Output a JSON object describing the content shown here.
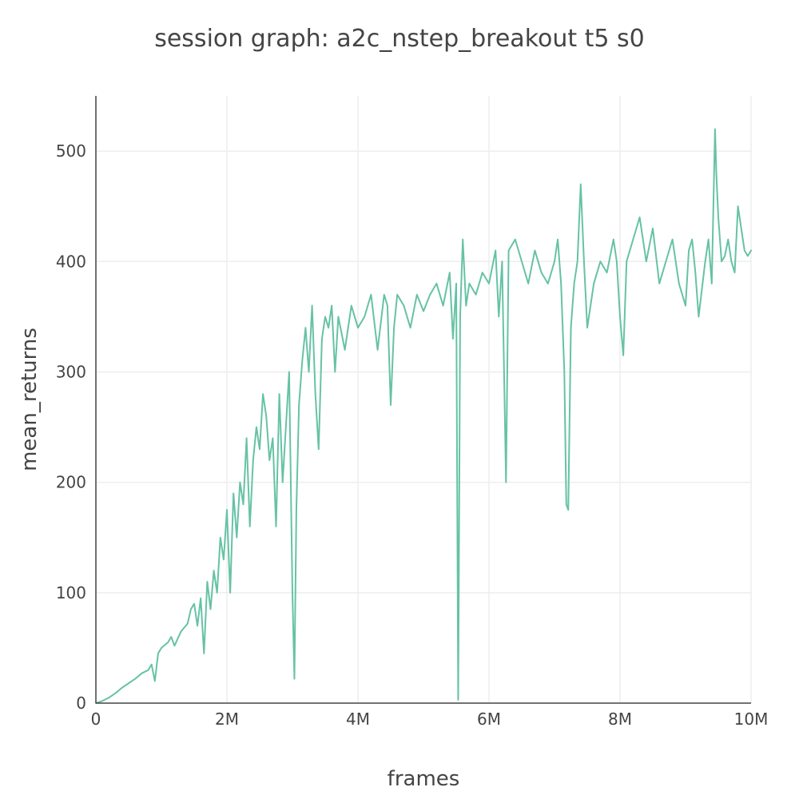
{
  "chart_data": {
    "type": "line",
    "title": "session graph: a2c_nstep_breakout t5 s0",
    "xlabel": "frames",
    "ylabel": "mean_returns",
    "xlim": [
      0,
      10000000
    ],
    "ylim": [
      0,
      550
    ],
    "x_ticks": [
      {
        "value": 0,
        "label": "0"
      },
      {
        "value": 2000000,
        "label": "2M"
      },
      {
        "value": 4000000,
        "label": "4M"
      },
      {
        "value": 6000000,
        "label": "6M"
      },
      {
        "value": 8000000,
        "label": "8M"
      },
      {
        "value": 10000000,
        "label": "10M"
      }
    ],
    "y_ticks": [
      {
        "value": 0,
        "label": "0"
      },
      {
        "value": 100,
        "label": "100"
      },
      {
        "value": 200,
        "label": "200"
      },
      {
        "value": 300,
        "label": "300"
      },
      {
        "value": 400,
        "label": "400"
      },
      {
        "value": 500,
        "label": "500"
      }
    ],
    "grid": true,
    "series": [
      {
        "color": "#66c2a5",
        "x": [
          0,
          100000,
          200000,
          300000,
          400000,
          500000,
          600000,
          700000,
          800000,
          850000,
          900000,
          950000,
          1000000,
          1100000,
          1150000,
          1200000,
          1300000,
          1400000,
          1450000,
          1500000,
          1550000,
          1600000,
          1650000,
          1700000,
          1750000,
          1800000,
          1850000,
          1900000,
          1950000,
          2000000,
          2050000,
          2100000,
          2150000,
          2200000,
          2250000,
          2300000,
          2350000,
          2400000,
          2450000,
          2500000,
          2550000,
          2600000,
          2650000,
          2700000,
          2750000,
          2800000,
          2850000,
          2900000,
          2950000,
          3000000,
          3030000,
          3060000,
          3100000,
          3150000,
          3200000,
          3250000,
          3300000,
          3350000,
          3400000,
          3450000,
          3500000,
          3550000,
          3600000,
          3650000,
          3700000,
          3800000,
          3900000,
          4000000,
          4100000,
          4200000,
          4300000,
          4400000,
          4450000,
          4500000,
          4550000,
          4600000,
          4700000,
          4800000,
          4900000,
          5000000,
          5100000,
          5200000,
          5300000,
          5400000,
          5450000,
          5500000,
          5530000,
          5560000,
          5600000,
          5650000,
          5700000,
          5800000,
          5900000,
          6000000,
          6100000,
          6150000,
          6200000,
          6230000,
          6260000,
          6300000,
          6400000,
          6500000,
          6600000,
          6700000,
          6800000,
          6900000,
          7000000,
          7050000,
          7100000,
          7150000,
          7180000,
          7210000,
          7250000,
          7300000,
          7350000,
          7400000,
          7450000,
          7500000,
          7600000,
          7700000,
          7800000,
          7900000,
          7950000,
          8000000,
          8050000,
          8100000,
          8200000,
          8300000,
          8400000,
          8500000,
          8600000,
          8700000,
          8800000,
          8900000,
          9000000,
          9050000,
          9100000,
          9150000,
          9200000,
          9300000,
          9350000,
          9400000,
          9450000,
          9470000,
          9500000,
          9550000,
          9600000,
          9650000,
          9700000,
          9750000,
          9800000,
          9850000,
          9900000,
          9950000,
          10000000
        ],
        "y": [
          0,
          2,
          5,
          9,
          14,
          18,
          22,
          27,
          30,
          35,
          20,
          45,
          50,
          55,
          60,
          52,
          65,
          72,
          85,
          90,
          70,
          95,
          45,
          110,
          85,
          120,
          100,
          150,
          130,
          175,
          100,
          190,
          150,
          200,
          180,
          240,
          160,
          220,
          250,
          230,
          280,
          260,
          220,
          240,
          160,
          280,
          200,
          250,
          300,
          100,
          22,
          175,
          270,
          310,
          340,
          300,
          360,
          280,
          230,
          330,
          350,
          340,
          360,
          300,
          350,
          320,
          360,
          340,
          350,
          370,
          320,
          370,
          360,
          270,
          340,
          370,
          360,
          340,
          370,
          355,
          370,
          380,
          360,
          390,
          330,
          380,
          3,
          350,
          420,
          360,
          380,
          370,
          390,
          380,
          410,
          350,
          400,
          300,
          200,
          410,
          420,
          400,
          380,
          410,
          390,
          380,
          400,
          420,
          380,
          300,
          180,
          175,
          340,
          380,
          400,
          470,
          400,
          340,
          380,
          400,
          390,
          420,
          400,
          350,
          315,
          400,
          420,
          440,
          400,
          430,
          380,
          400,
          420,
          380,
          360,
          410,
          420,
          390,
          350,
          400,
          420,
          380,
          520,
          480,
          440,
          400,
          405,
          420,
          400,
          390,
          450,
          430,
          410,
          405,
          410
        ]
      }
    ]
  }
}
